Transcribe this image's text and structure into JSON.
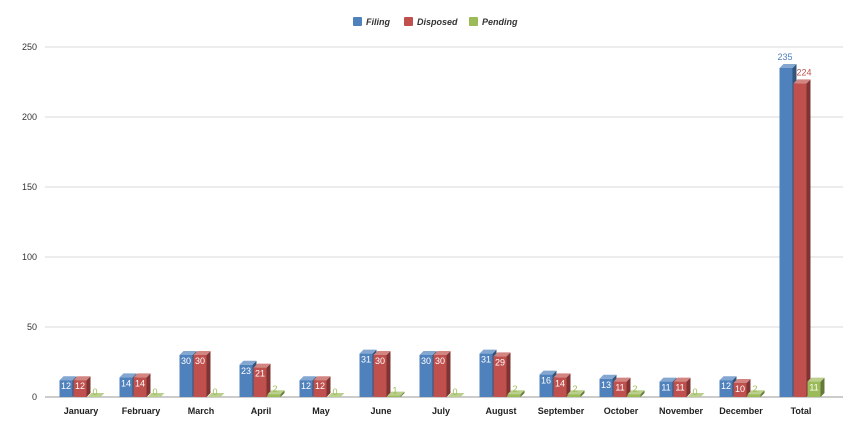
{
  "chart_data": {
    "type": "bar",
    "title": "",
    "xlabel": "",
    "ylabel": "",
    "ylim": [
      0,
      250
    ],
    "yticks": [
      0,
      50,
      100,
      150,
      200,
      250
    ],
    "grid": true,
    "legend_position": "top-center",
    "categories": [
      "January",
      "February",
      "March",
      "April",
      "May",
      "June",
      "July",
      "August",
      "September",
      "October",
      "November",
      "December",
      "Total"
    ],
    "series": [
      {
        "name": "Filing",
        "color": "#4f81bd",
        "values": [
          12,
          14,
          30,
          23,
          12,
          31,
          30,
          31,
          16,
          13,
          11,
          12,
          235
        ]
      },
      {
        "name": "Disposed",
        "color": "#c0504d",
        "values": [
          12,
          14,
          30,
          21,
          12,
          30,
          30,
          29,
          14,
          11,
          11,
          10,
          224
        ]
      },
      {
        "name": "Pending",
        "color": "#9bbb59",
        "values": [
          0,
          0,
          0,
          2,
          0,
          1,
          0,
          2,
          2,
          2,
          0,
          2,
          11
        ]
      }
    ]
  }
}
